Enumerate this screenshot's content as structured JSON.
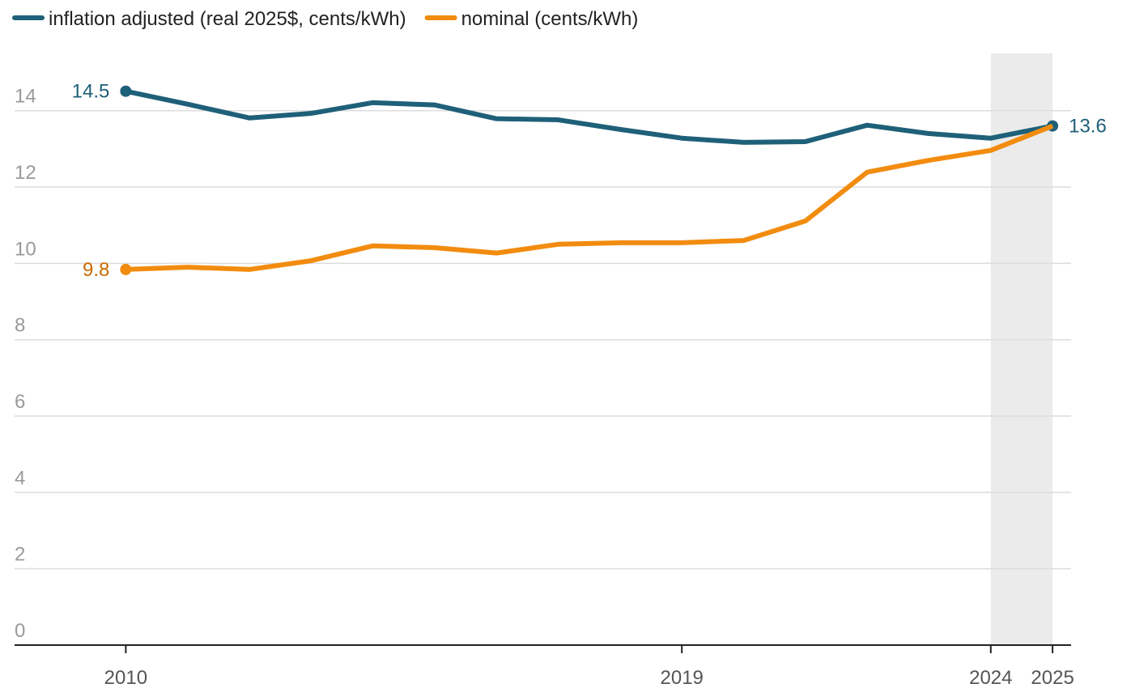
{
  "chart_data": {
    "type": "line",
    "x": [
      2010,
      2011,
      2012,
      2013,
      2014,
      2015,
      2016,
      2017,
      2018,
      2019,
      2020,
      2021,
      2022,
      2023,
      2024,
      2025
    ],
    "series": [
      {
        "name": "inflation adjusted (real 2025$, cents/kWh)",
        "color": "#1f6079",
        "label_color": "#1f6079",
        "values": [
          14.51,
          14.17,
          13.81,
          13.93,
          14.21,
          14.15,
          13.79,
          13.76,
          13.51,
          13.28,
          13.17,
          13.19,
          13.62,
          13.4,
          13.28,
          13.6
        ],
        "value_labels": [
          "14.5",
          null,
          null,
          null,
          null,
          null,
          null,
          null,
          null,
          null,
          null,
          null,
          null,
          null,
          null,
          "13.6"
        ]
      },
      {
        "name": "nominal (cents/kWh)",
        "color": "#f28c0f",
        "label_color": "#c86a00",
        "values": [
          9.84,
          9.9,
          9.84,
          10.07,
          10.46,
          10.41,
          10.27,
          10.5,
          10.54,
          10.54,
          10.6,
          11.11,
          12.39,
          12.7,
          12.96,
          13.6
        ],
        "value_labels": [
          "9.8",
          null,
          null,
          null,
          null,
          null,
          null,
          null,
          null,
          null,
          null,
          null,
          null,
          null,
          null,
          null
        ]
      }
    ],
    "xlim": [
      2008.2,
      2025.3
    ],
    "xticks": [
      2010,
      2019,
      2024,
      2025
    ],
    "ylim": [
      0,
      15.5
    ],
    "yticks": [
      0,
      2,
      4,
      6,
      8,
      10,
      12,
      14
    ],
    "grid": true,
    "highlight": [
      2024,
      2025
    ],
    "legend": "top-left"
  }
}
